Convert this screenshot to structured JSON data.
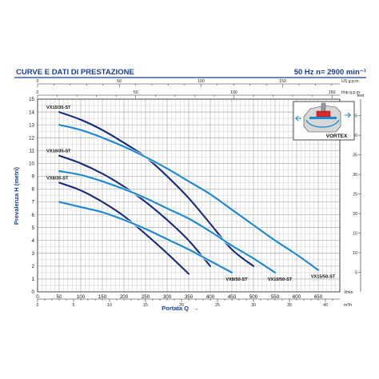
{
  "header": {
    "title": "CURVE E DATI DI PRESTAZIONE",
    "spec": "50 Hz   n= 2900 min⁻¹"
  },
  "colors": {
    "header_line": "#1b3f8f",
    "grid": "#9a9a9a",
    "dark_series": "#1c2f7a",
    "light_series": "#1e88d0",
    "arrow": "#1e88d0"
  },
  "inset": {
    "label": "VORTEX",
    "icon": "vortex-pump-cross-section-icon"
  },
  "chart_data": {
    "type": "line",
    "title": "CURVE E DATI DI PRESTAZIONE",
    "xlabel": "Portata Q",
    "ylabel": "Prevalenza H (metri)",
    "xlim": [
      0,
      700
    ],
    "ylim": [
      0,
      15
    ],
    "x_unit": "l/min",
    "x_ticks": [
      0,
      50,
      100,
      150,
      200,
      250,
      300,
      350,
      400,
      450,
      500,
      550,
      600,
      650,
      700
    ],
    "y_ticks": [
      0,
      1,
      2,
      3,
      4,
      5,
      6,
      7,
      8,
      9,
      10,
      11,
      12,
      13,
      14,
      15
    ],
    "grid": true,
    "legend": "none (labels at curve ends)",
    "secondary_axes": {
      "top_us_gpm": {
        "unit": "US g.p.m.",
        "ticks": [
          0,
          50,
          100,
          150
        ]
      },
      "top_imp_gpm": {
        "unit": "Imp g.p.m.",
        "ticks": [
          0,
          50,
          100,
          150
        ]
      },
      "right_feet": {
        "unit": "feet",
        "ticks": [
          5,
          10,
          15,
          20,
          25,
          30,
          35,
          40,
          45
        ]
      },
      "bottom_m3h": {
        "unit": "m³/h",
        "ticks": [
          0,
          5,
          10,
          15,
          20,
          25,
          30,
          35,
          40
        ]
      }
    },
    "series": [
      {
        "name": "VX15/35-ST",
        "label_text": "VX15/35-ST",
        "color": "dark",
        "points": [
          [
            50,
            14.0
          ],
          [
            100,
            13.4
          ],
          [
            150,
            12.6
          ],
          [
            200,
            11.6
          ],
          [
            250,
            10.5
          ],
          [
            300,
            9.0
          ],
          [
            350,
            7.3
          ],
          [
            400,
            5.3
          ],
          [
            450,
            3.3
          ],
          [
            500,
            2.0
          ]
        ]
      },
      {
        "name": "VX10/35-ST",
        "label_text": "VX10/35-ST",
        "color": "dark",
        "points": [
          [
            50,
            10.6
          ],
          [
            100,
            10.0
          ],
          [
            150,
            9.2
          ],
          [
            200,
            8.2
          ],
          [
            250,
            7.0
          ],
          [
            300,
            5.6
          ],
          [
            350,
            4.0
          ],
          [
            400,
            2.0
          ]
        ]
      },
      {
        "name": "VX8/35-ST",
        "label_text": "VX8/35-ST",
        "color": "dark",
        "points": [
          [
            50,
            8.5
          ],
          [
            100,
            7.9
          ],
          [
            150,
            7.0
          ],
          [
            200,
            5.9
          ],
          [
            250,
            4.5
          ],
          [
            300,
            3.0
          ],
          [
            350,
            1.4
          ]
        ]
      },
      {
        "name": "VX15/50-ST",
        "label_text": "VX15/50-ST",
        "color": "light",
        "points": [
          [
            50,
            13.0
          ],
          [
            100,
            12.6
          ],
          [
            150,
            12.0
          ],
          [
            200,
            11.3
          ],
          [
            250,
            10.5
          ],
          [
            300,
            9.6
          ],
          [
            350,
            8.6
          ],
          [
            400,
            7.6
          ],
          [
            450,
            6.4
          ],
          [
            500,
            5.2
          ],
          [
            550,
            4.0
          ],
          [
            600,
            2.9
          ],
          [
            650,
            1.7
          ]
        ]
      },
      {
        "name": "VX10/50-ST",
        "label_text": "VX10/50-ST",
        "color": "light",
        "points": [
          [
            50,
            9.4
          ],
          [
            100,
            9.1
          ],
          [
            150,
            8.6
          ],
          [
            200,
            8.0
          ],
          [
            250,
            7.3
          ],
          [
            300,
            6.5
          ],
          [
            350,
            5.7
          ],
          [
            400,
            4.7
          ],
          [
            450,
            3.6
          ],
          [
            500,
            2.6
          ],
          [
            550,
            1.5
          ]
        ]
      },
      {
        "name": "VX8/50-ST",
        "label_text": "VX8/50-ST",
        "color": "light",
        "points": [
          [
            50,
            7.0
          ],
          [
            100,
            6.6
          ],
          [
            150,
            6.2
          ],
          [
            200,
            5.6
          ],
          [
            250,
            4.9
          ],
          [
            300,
            4.1
          ],
          [
            350,
            3.3
          ],
          [
            400,
            2.4
          ],
          [
            450,
            1.5
          ]
        ]
      }
    ]
  }
}
